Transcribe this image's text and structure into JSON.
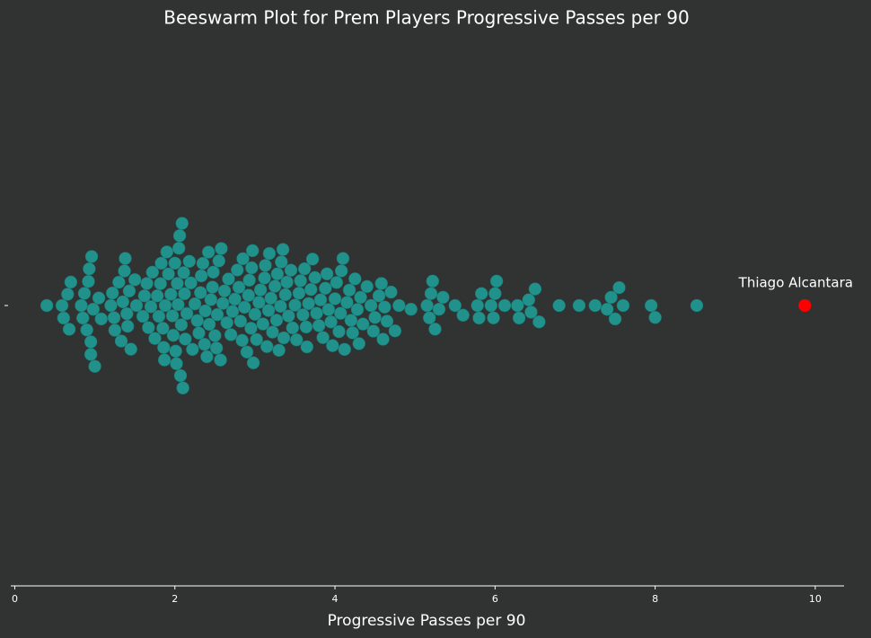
{
  "chart_data": {
    "type": "beeswarm",
    "title": "Beeswarm Plot for Prem Players Progressive Passes per 90",
    "x_label": "Progressive Passes per 90",
    "color": "#21918c",
    "values": [
      0.4,
      0.59,
      0.61,
      0.66,
      0.68,
      0.7,
      0.83,
      0.85,
      0.87,
      0.9,
      0.92,
      0.93,
      0.95,
      0.95,
      0.96,
      0.98,
      1.0,
      1.05,
      1.08,
      1.2,
      1.22,
      1.24,
      1.25,
      1.3,
      1.33,
      1.35,
      1.37,
      1.38,
      1.4,
      1.41,
      1.43,
      1.45,
      1.5,
      1.52,
      1.6,
      1.62,
      1.65,
      1.67,
      1.7,
      1.72,
      1.75,
      1.78,
      1.8,
      1.82,
      1.83,
      1.85,
      1.86,
      1.87,
      1.88,
      1.9,
      1.92,
      1.95,
      1.97,
      1.98,
      2.0,
      2.01,
      2.02,
      2.03,
      2.04,
      2.05,
      2.06,
      2.07,
      2.08,
      2.09,
      2.1,
      2.11,
      2.12,
      2.13,
      2.15,
      2.18,
      2.2,
      2.22,
      2.25,
      2.28,
      2.3,
      2.32,
      2.33,
      2.35,
      2.37,
      2.38,
      2.4,
      2.42,
      2.43,
      2.45,
      2.47,
      2.48,
      2.5,
      2.52,
      2.53,
      2.55,
      2.57,
      2.58,
      2.6,
      2.62,
      2.65,
      2.67,
      2.7,
      2.72,
      2.75,
      2.78,
      2.8,
      2.82,
      2.84,
      2.85,
      2.87,
      2.9,
      2.92,
      2.93,
      2.95,
      2.96,
      2.97,
      2.98,
      3.0,
      3.02,
      3.05,
      3.07,
      3.1,
      3.12,
      3.13,
      3.15,
      3.17,
      3.18,
      3.2,
      3.22,
      3.25,
      3.27,
      3.28,
      3.3,
      3.32,
      3.33,
      3.35,
      3.36,
      3.38,
      3.4,
      3.42,
      3.45,
      3.47,
      3.5,
      3.52,
      3.55,
      3.57,
      3.6,
      3.62,
      3.64,
      3.65,
      3.67,
      3.7,
      3.72,
      3.75,
      3.77,
      3.8,
      3.82,
      3.85,
      3.88,
      3.9,
      3.92,
      3.95,
      3.97,
      4.0,
      4.02,
      4.05,
      4.07,
      4.08,
      4.1,
      4.12,
      4.15,
      4.18,
      4.2,
      4.22,
      4.25,
      4.28,
      4.3,
      4.32,
      4.35,
      4.4,
      4.45,
      4.48,
      4.5,
      4.55,
      4.58,
      4.6,
      4.62,
      4.65,
      4.7,
      4.75,
      4.8,
      4.95,
      5.15,
      5.18,
      5.2,
      5.22,
      5.25,
      5.3,
      5.35,
      5.5,
      5.6,
      5.78,
      5.8,
      5.83,
      5.95,
      5.98,
      6.0,
      6.02,
      6.12,
      6.28,
      6.3,
      6.42,
      6.45,
      6.5,
      6.55,
      6.8,
      7.05,
      7.25,
      7.4,
      7.45,
      7.5,
      7.55,
      7.6,
      7.95,
      8.0,
      8.52
    ],
    "highlight": {
      "label": "Thiago Alcantara",
      "value": 9.87,
      "color": "#ff0000"
    },
    "xlim": [
      -0.05,
      10.36
    ],
    "xticks": [
      0,
      2,
      4,
      6,
      8,
      10
    ]
  }
}
